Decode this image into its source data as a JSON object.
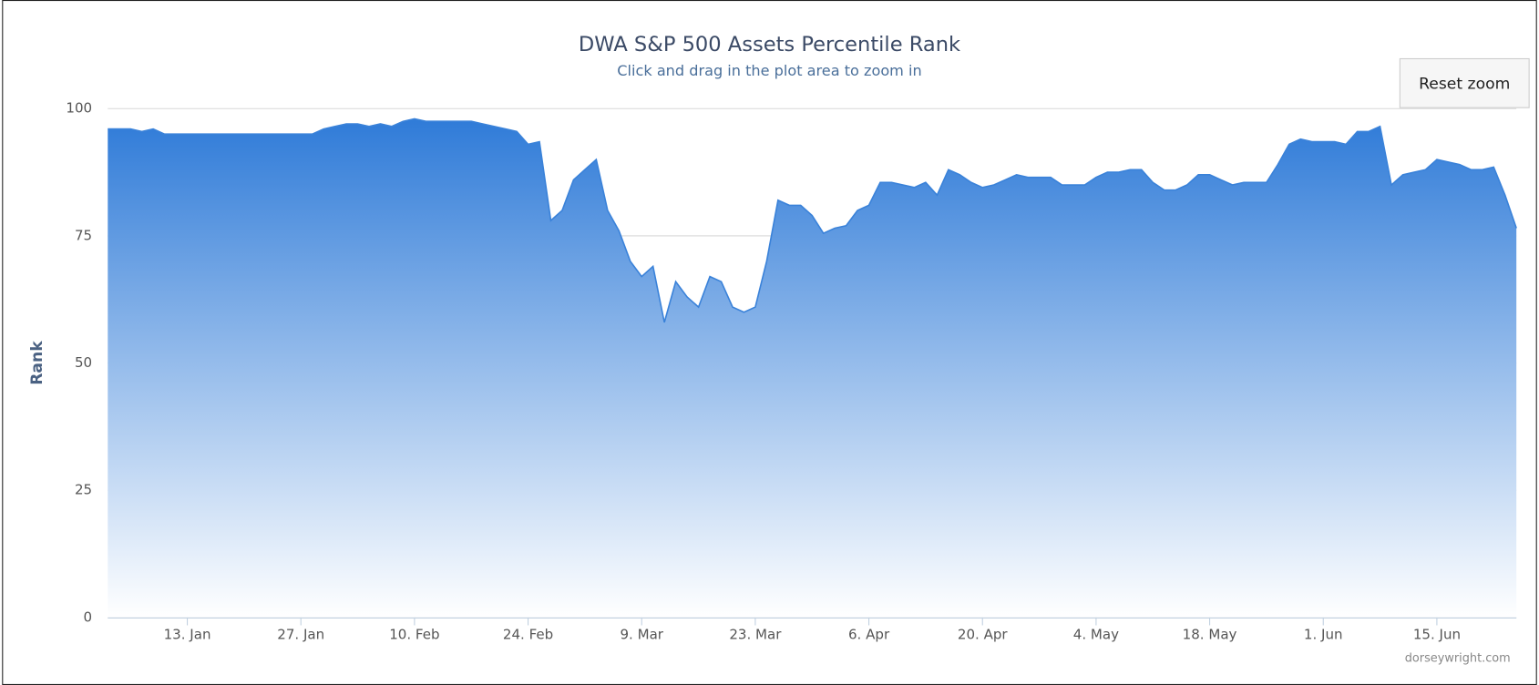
{
  "chart_data": {
    "type": "area",
    "title": "DWA S&P 500 Assets Percentile Rank",
    "subtitle": "Click and drag in the plot area to zoom in",
    "button": "Reset zoom",
    "y_label": "Rank",
    "credits": "dorseywright.com",
    "color": "#3a82d9",
    "grid": true,
    "ylim": [
      0,
      100
    ],
    "yticks": [
      0,
      25,
      50,
      75,
      100
    ],
    "x": [
      "2. Jan",
      "3. Jan",
      "6. Jan",
      "7. Jan",
      "8. Jan",
      "9. Jan",
      "10. Jan",
      "13. Jan",
      "14. Jan",
      "15. Jan",
      "16. Jan",
      "17. Jan",
      "20. Jan",
      "21. Jan",
      "22. Jan",
      "23. Jan",
      "24. Jan",
      "27. Jan",
      "28. Jan",
      "29. Jan",
      "30. Jan",
      "31. Jan",
      "3. Feb",
      "4. Feb",
      "5. Feb",
      "6. Feb",
      "7. Feb",
      "10. Feb",
      "11. Feb",
      "12. Feb",
      "13. Feb",
      "14. Feb",
      "17. Feb",
      "18. Feb",
      "19. Feb",
      "20. Feb",
      "21. Feb",
      "24. Feb",
      "25. Feb",
      "26. Feb",
      "27. Feb",
      "28. Feb",
      "2. Mar",
      "3. Mar",
      "4. Mar",
      "5. Mar",
      "6. Mar",
      "9. Mar",
      "10. Mar",
      "11. Mar",
      "12. Mar",
      "13. Mar",
      "16. Mar",
      "17. Mar",
      "18. Mar",
      "19. Mar",
      "20. Mar",
      "23. Mar",
      "24. Mar",
      "25. Mar",
      "26. Mar",
      "27. Mar",
      "30. Mar",
      "31. Mar",
      "1. Apr",
      "2. Apr",
      "3. Apr",
      "6. Apr",
      "7. Apr",
      "8. Apr",
      "9. Apr",
      "10. Apr",
      "13. Apr",
      "14. Apr",
      "15. Apr",
      "16. Apr",
      "17. Apr",
      "20. Apr",
      "21. Apr",
      "22. Apr",
      "23. Apr",
      "24. Apr",
      "27. Apr",
      "28. Apr",
      "29. Apr",
      "30. Apr",
      "1. May",
      "4. May",
      "5. May",
      "6. May",
      "7. May",
      "8. May",
      "11. May",
      "12. May",
      "13. May",
      "14. May",
      "15. May",
      "18. May",
      "19. May",
      "20. May",
      "21. May",
      "22. May",
      "25. May",
      "26. May",
      "27. May",
      "28. May",
      "29. May",
      "1. Jun",
      "2. Jun",
      "3. Jun",
      "4. Jun",
      "5. Jun",
      "8. Jun",
      "9. Jun",
      "10. Jun",
      "11. Jun",
      "12. Jun",
      "15. Jun",
      "16. Jun",
      "17. Jun",
      "18. Jun",
      "19. Jun",
      "22. Jun",
      "23. Jun",
      "24. Jun"
    ],
    "values": [
      96,
      96,
      96,
      95.5,
      96,
      95,
      95,
      95,
      95,
      95,
      95,
      95,
      95,
      95,
      95,
      95,
      95,
      95,
      95,
      96,
      96.5,
      97,
      97,
      96.5,
      97,
      96.5,
      97.5,
      98,
      97.5,
      97.5,
      97.5,
      97.5,
      97.5,
      97,
      96.5,
      96,
      95.5,
      93,
      93.5,
      78,
      80,
      86,
      88,
      90,
      80,
      76,
      70,
      67,
      69,
      58,
      66,
      63,
      61,
      67,
      66,
      61,
      60,
      61,
      70,
      82,
      81,
      81,
      79,
      75.5,
      76.5,
      77,
      80,
      81,
      85.5,
      85.5,
      85,
      84.5,
      85.5,
      83,
      88,
      87,
      85.5,
      84.5,
      85,
      86,
      87,
      86.5,
      86.5,
      86.5,
      85,
      85,
      85,
      86.5,
      87.5,
      87.5,
      88,
      88,
      85.5,
      84,
      84,
      85,
      87,
      87,
      86,
      85,
      85.5,
      85.5,
      85.5,
      89,
      93,
      94,
      93.5,
      93.5,
      93.5,
      93,
      95.5,
      95.5,
      96.5,
      85,
      87,
      87.5,
      88,
      90,
      89.5,
      89,
      88,
      88,
      88.5,
      83,
      76.5
    ],
    "xticks": [
      "13. Jan",
      "27. Jan",
      "10. Feb",
      "24. Feb",
      "9. Mar",
      "23. Mar",
      "6. Apr",
      "20. Apr",
      "4. May",
      "18. May",
      "1. Jun",
      "15. Jun"
    ]
  }
}
